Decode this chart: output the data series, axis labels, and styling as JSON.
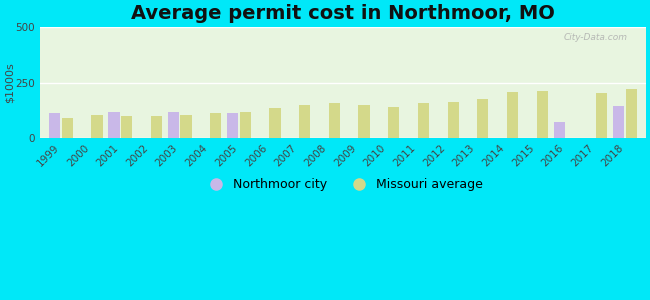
{
  "title": "Average permit cost in Northmoor, MO",
  "ylabel": "$1000s",
  "years": [
    1999,
    2000,
    2001,
    2002,
    2003,
    2004,
    2005,
    2006,
    2007,
    2008,
    2009,
    2010,
    2011,
    2012,
    2013,
    2014,
    2015,
    2016,
    2017,
    2018
  ],
  "northmoor": [
    115,
    null,
    120,
    null,
    118,
    null,
    115,
    null,
    null,
    null,
    null,
    null,
    null,
    null,
    null,
    null,
    null,
    72,
    null,
    145
  ],
  "missouri": [
    90,
    105,
    100,
    102,
    105,
    112,
    118,
    138,
    148,
    158,
    148,
    142,
    160,
    162,
    178,
    210,
    215,
    null,
    205,
    220
  ],
  "northmoor_color": "#c9b8e8",
  "missouri_color": "#d4d98a",
  "background_outer": "#00e8f8",
  "background_plot": "#e8f5e0",
  "ylim": [
    0,
    500
  ],
  "yticks": [
    0,
    250,
    500
  ],
  "bar_width": 0.38,
  "title_fontsize": 14,
  "legend_fontsize": 9,
  "tick_fontsize": 7.5
}
